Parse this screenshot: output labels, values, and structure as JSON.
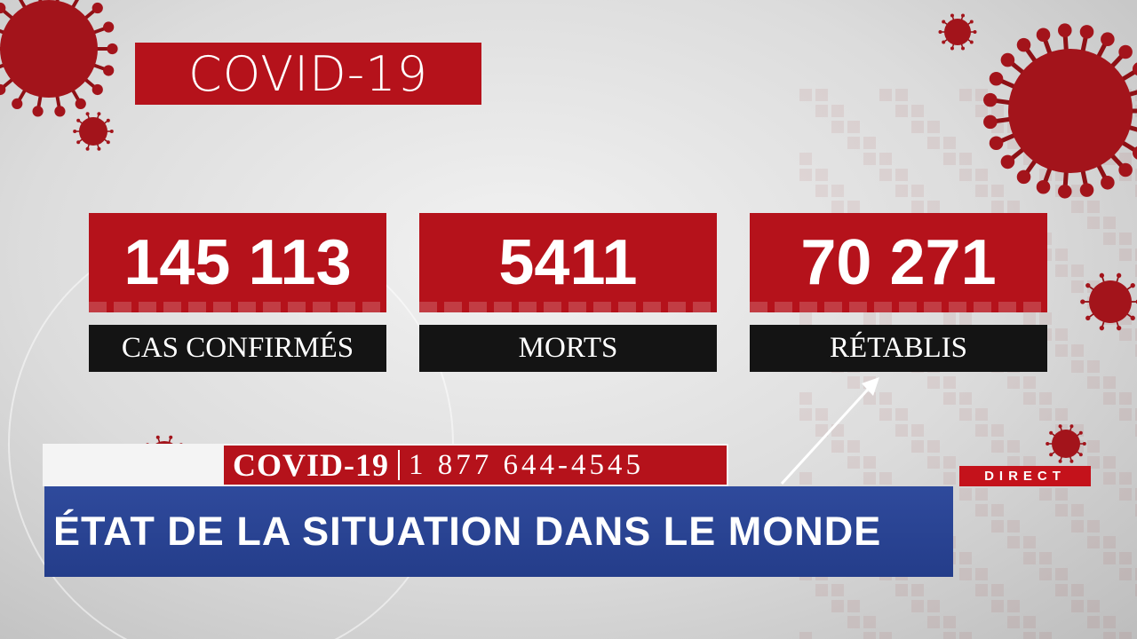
{
  "header": {
    "title": "COVID-19"
  },
  "stats": [
    {
      "value": "145 113",
      "label": "CAS CONFIRMÉS"
    },
    {
      "value": "5411",
      "label": "MORTS"
    },
    {
      "value": "70 271",
      "label": "RÉTABLIS"
    }
  ],
  "ticker": {
    "tag": "COVID-19",
    "phone": "1 877 644-4545"
  },
  "banner": {
    "text": "ÉTAT DE LA SITUATION DANS LE MONDE"
  },
  "live": {
    "text": "DIRECT"
  }
}
